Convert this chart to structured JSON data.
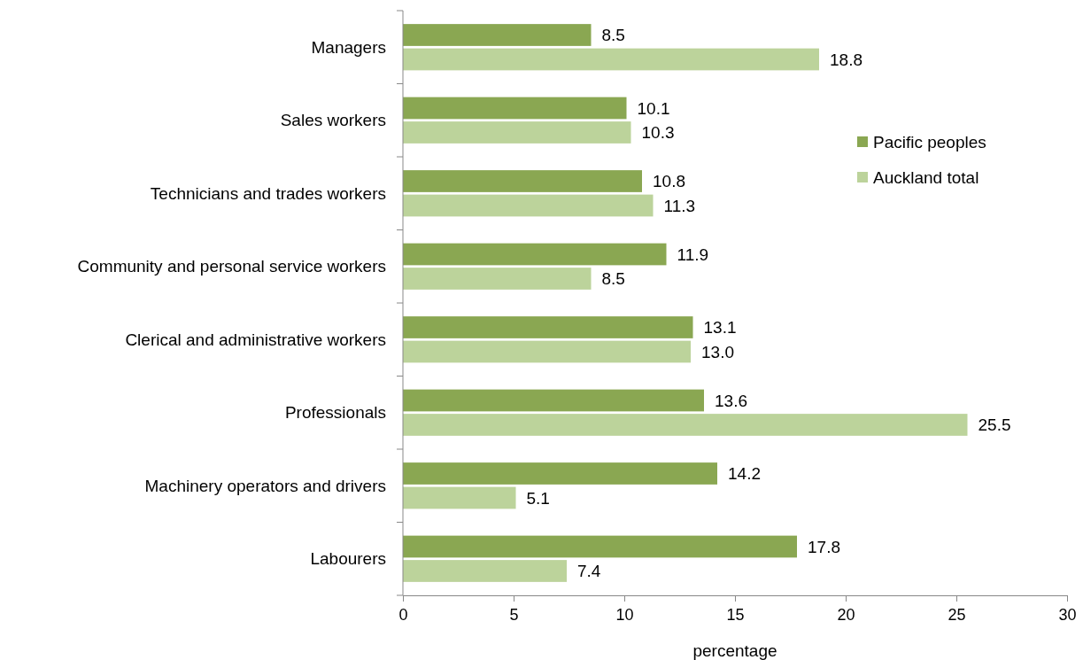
{
  "chart_data": {
    "type": "bar",
    "orientation": "horizontal",
    "xlabel": "percentage",
    "categories": [
      "Managers",
      "Sales workers",
      "Technicians and trades workers",
      "Community and personal service workers",
      "Clerical and administrative workers",
      "Professionals",
      "Machinery operators and drivers",
      "Labourers"
    ],
    "series": [
      {
        "name": "Pacific peoples",
        "color": "#8aa752",
        "values": [
          8.5,
          10.1,
          10.8,
          11.9,
          13.1,
          13.6,
          14.2,
          17.8
        ],
        "value_labels": [
          "8.5",
          "10.1",
          "10.8",
          "11.9",
          "13.1",
          "13.6",
          "14.2",
          "17.8"
        ]
      },
      {
        "name": "Auckland total",
        "color": "#bcd39b",
        "values": [
          18.8,
          10.3,
          11.3,
          8.5,
          13.0,
          25.5,
          5.1,
          7.4
        ],
        "value_labels": [
          "18.8",
          "10.3",
          "11.3",
          "8.5",
          "13.0",
          "25.5",
          "5.1",
          "7.4"
        ]
      }
    ],
    "xlim": [
      0,
      30
    ],
    "xticks": [
      0,
      5,
      10,
      15,
      20,
      25,
      30
    ],
    "legend": "top right",
    "grid": false
  }
}
